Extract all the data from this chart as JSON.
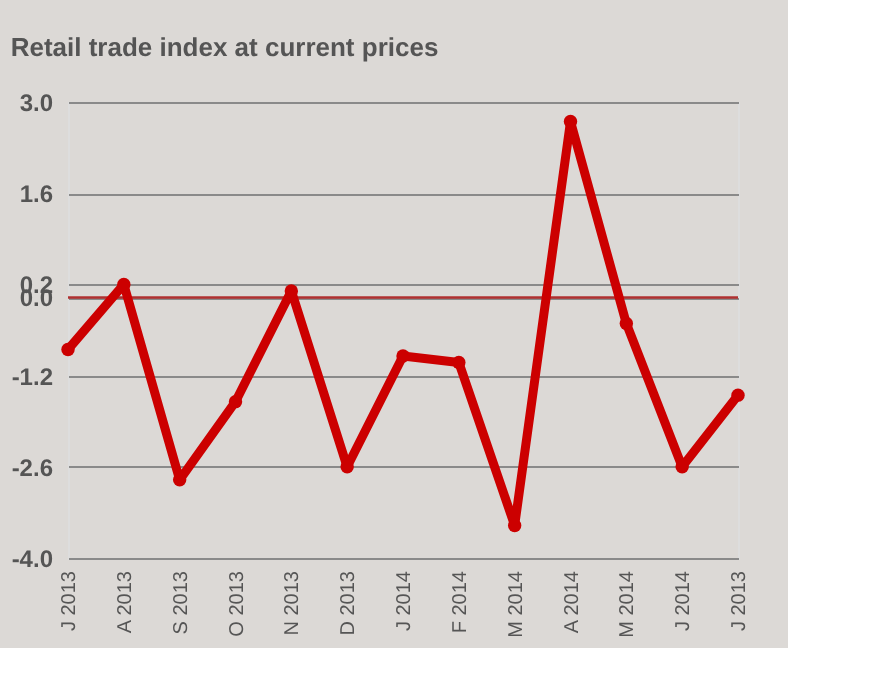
{
  "chart_data": {
    "type": "line",
    "title": "Retail trade index at current prices",
    "categories": [
      "J 2013",
      "A 2013",
      "S 2013",
      "O 2013",
      "N 2013",
      "D 2013",
      "J 2014",
      "F 2014",
      "M 2014",
      "A 2014",
      "M 2014",
      "J 2014",
      "J 2013"
    ],
    "series": [
      {
        "color": "#cc0000",
        "values": [
          -0.8,
          0.2,
          -2.8,
          -1.6,
          0.1,
          -2.6,
          -0.9,
          -1.0,
          -3.5,
          2.7,
          -0.4,
          -2.6,
          -1.5
        ]
      }
    ],
    "ylim": [
      -4.0,
      3.0
    ],
    "yticks": [
      {
        "value": -4.0,
        "label": "-4.0"
      },
      {
        "value": -2.6,
        "label": "-2.6"
      },
      {
        "value": -1.2,
        "label": "-1.2"
      },
      {
        "value": 0.0,
        "label": "0.0"
      },
      {
        "value": 0.2,
        "label": "0.2"
      },
      {
        "value": 1.6,
        "label": "1.6"
      },
      {
        "value": 3.0,
        "label": "3.0"
      }
    ],
    "ref_lines": [
      {
        "axis": "y",
        "value": 0.0,
        "color": "#b03030"
      }
    ],
    "grid": "y",
    "marker": "circle",
    "line_style": "solid"
  }
}
